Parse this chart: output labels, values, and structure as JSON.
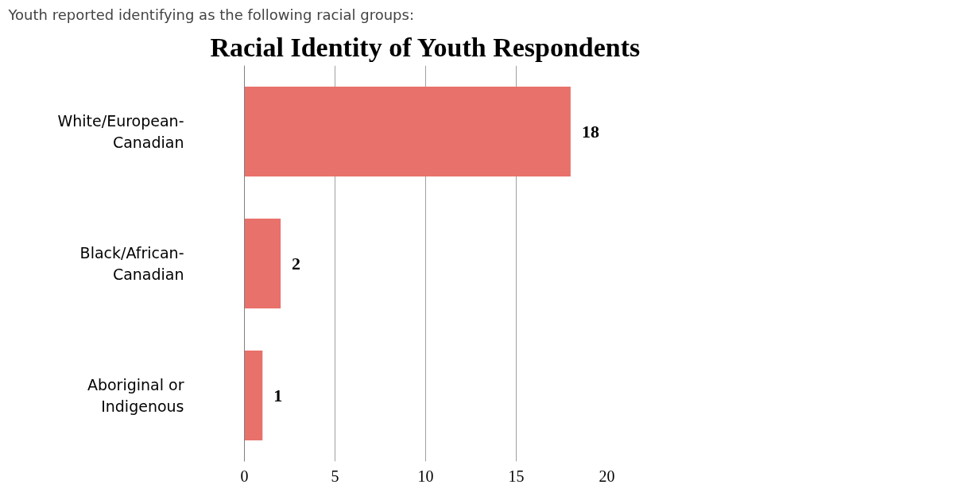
{
  "chart_data": {
    "type": "bar",
    "orientation": "horizontal",
    "title": "Racial Identity of Youth Respondents",
    "annotations": [
      "Youth reported identifying as the following racial groups:"
    ],
    "categories": [
      "White/European-\nCanadian",
      "Black/African-\nCanadian",
      "Aboriginal or\nIndigenous"
    ],
    "values": [
      18,
      2,
      1
    ],
    "color": "#e8716b",
    "data_labels": true,
    "xlim": [
      0,
      20
    ],
    "xticks": [
      0,
      5,
      10,
      15,
      20
    ],
    "grid": "x"
  }
}
